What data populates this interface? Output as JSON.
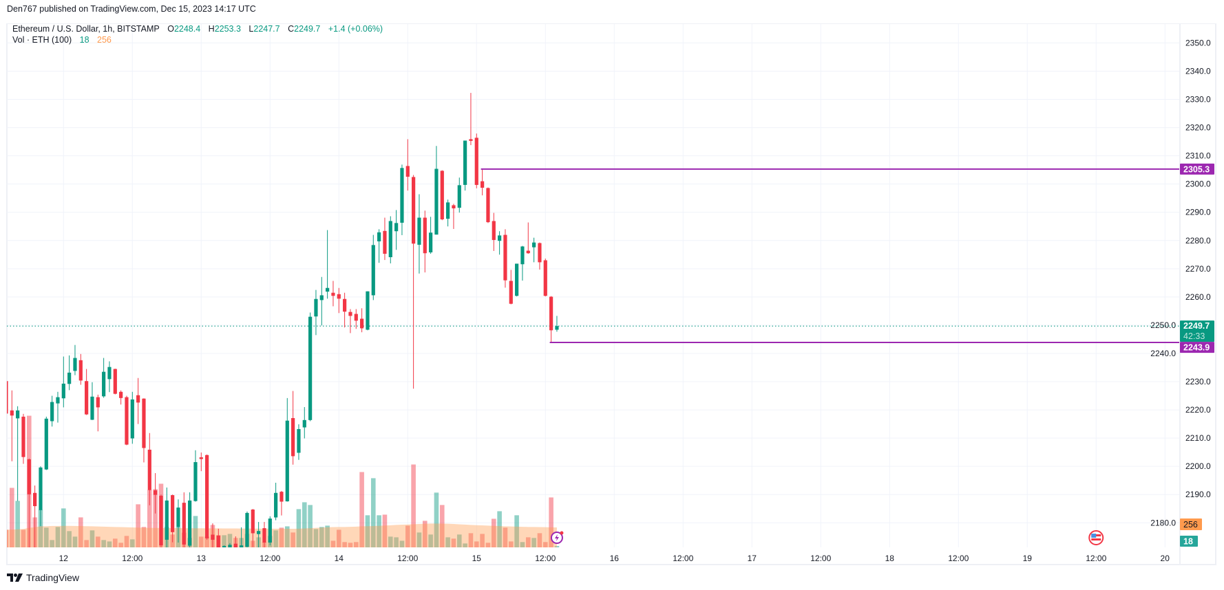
{
  "header": {
    "published": "Den767 published on TradingView.com, Dec 15, 2023 14:17 UTC"
  },
  "legend": {
    "symbol": "Ethereum / U.S. Dollar, 1h, BITSTAMP",
    "o_label": "O",
    "o": "2248.4",
    "h_label": "H",
    "h": "2253.3",
    "l_label": "L",
    "l": "2247.7",
    "c_label": "C",
    "c": "2249.7",
    "change": "+1.4 (+0.06%)",
    "vol_label": "Vol · ETH (100)",
    "vol_value": "18",
    "vol_ma": "256"
  },
  "footer": {
    "brand": "TradingView"
  },
  "colors": {
    "up": "#089981",
    "down": "#f23645",
    "level": "#9c27b0",
    "vol_ma": "#ff9a4d",
    "grid": "#f0f3fa"
  },
  "icons": [
    "latest-updates-icon",
    "us-economic-event-icon",
    "tradingview-logo-icon"
  ],
  "chart_data": {
    "type": "candlestick",
    "title": "",
    "symbol": "ETHUSD",
    "interval": "1h",
    "ylim": [
      2171.3,
      2357.9
    ],
    "y_ticks": [
      "2180.0",
      "2190.0",
      "2200.0",
      "2210.0",
      "2220.0",
      "2230.0",
      "2240.0",
      "2250.0",
      "2260.0",
      "2270.0",
      "2280.0",
      "2290.0",
      "2300.0",
      "2310.0",
      "2320.0",
      "2330.0",
      "2340.0",
      "2350.0"
    ],
    "x_ticks": [
      {
        "t": "2023-12-12T00:00",
        "label": "12"
      },
      {
        "t": "2023-12-12T12:00",
        "label": "12:00"
      },
      {
        "t": "2023-12-13T00:00",
        "label": "13"
      },
      {
        "t": "2023-12-13T12:00",
        "label": "12:00"
      },
      {
        "t": "2023-12-14T00:00",
        "label": "14"
      },
      {
        "t": "2023-12-14T12:00",
        "label": "12:00"
      },
      {
        "t": "2023-12-15T00:00",
        "label": "15"
      },
      {
        "t": "2023-12-15T12:00",
        "label": "12:00"
      },
      {
        "t": "2023-12-16T00:00",
        "label": "16"
      },
      {
        "t": "2023-12-16T12:00",
        "label": "12:00"
      },
      {
        "t": "2023-12-17T00:00",
        "label": "17"
      },
      {
        "t": "2023-12-17T12:00",
        "label": "12:00"
      },
      {
        "t": "2023-12-18T00:00",
        "label": "18"
      },
      {
        "t": "2023-12-18T12:00",
        "label": "12:00"
      },
      {
        "t": "2023-12-19T00:00",
        "label": "19"
      },
      {
        "t": "2023-12-19T12:00",
        "label": "12:00"
      },
      {
        "t": "2023-12-20T00:00",
        "label": "20"
      }
    ],
    "grid": true,
    "candle_fields": [
      "time",
      "open",
      "high",
      "low",
      "close",
      "volume"
    ],
    "candles": [
      [
        "2023-12-11T14:00",
        2230.2,
        2230.5,
        2218.5,
        2218.7,
        226
      ],
      [
        "2023-12-11T15:00",
        2219.8,
        2226.9,
        2201.8,
        2218.0,
        764
      ],
      [
        "2023-12-11T16:00",
        2217.0,
        2221.3,
        2187.7,
        2219.8,
        597
      ],
      [
        "2023-12-11T17:00",
        2217.6,
        2218.6,
        2200.9,
        2203.3,
        226
      ],
      [
        "2023-12-11T18:00",
        2202.5,
        2202.8,
        2170.0,
        2190.1,
        1690
      ],
      [
        "2023-12-11T19:00",
        2190.6,
        2193.2,
        2170.0,
        2185.9,
        385
      ],
      [
        "2023-12-11T20:00",
        2184.5,
        2200.0,
        2178.8,
        2199.6,
        482
      ],
      [
        "2023-12-11T21:00",
        2198.9,
        2217.6,
        2198.7,
        2216.9,
        253
      ],
      [
        "2023-12-11T22:00",
        2216.0,
        2225.0,
        2214.1,
        2222.8,
        94
      ],
      [
        "2023-12-11T23:00",
        2222.3,
        2226.4,
        2215.5,
        2224.5,
        262
      ],
      [
        "2023-12-12T00:00",
        2224.1,
        2238.9,
        2220.9,
        2229.3,
        500
      ],
      [
        "2023-12-12T01:00",
        2229.2,
        2239.3,
        2227.0,
        2233.2,
        209
      ],
      [
        "2023-12-12T02:00",
        2233.8,
        2243.0,
        2232.3,
        2238.4,
        138
      ],
      [
        "2023-12-12T03:00",
        2237.6,
        2239.8,
        2228.9,
        2230.4,
        385
      ],
      [
        "2023-12-12T04:00",
        2230.2,
        2234.5,
        2218.2,
        2218.4,
        94
      ],
      [
        "2023-12-12T05:00",
        2216.5,
        2229.8,
        2216.4,
        2224.7,
        218
      ],
      [
        "2023-12-12T06:00",
        2224.5,
        2225.4,
        2212.4,
        2220.9,
        138
      ],
      [
        "2023-12-12T07:00",
        2224.8,
        2238.4,
        2224.3,
        2233.5,
        94
      ],
      [
        "2023-12-12T08:00",
        2230.9,
        2237.2,
        2226.3,
        2235.2,
        76
      ],
      [
        "2023-12-12T09:00",
        2234.5,
        2234.6,
        2225.5,
        2225.7,
        112
      ],
      [
        "2023-12-12T10:00",
        2226.4,
        2226.9,
        2221.9,
        2224.2,
        59
      ],
      [
        "2023-12-12T11:00",
        2224.5,
        2225.0,
        2207.5,
        2207.7,
        147
      ],
      [
        "2023-12-12T12:00",
        2209.9,
        2226.4,
        2208.0,
        2223.7,
        103
      ],
      [
        "2023-12-12T13:00",
        2225.2,
        2231.3,
        2215.0,
        2222.6,
        553
      ],
      [
        "2023-12-12T14:00",
        2224.0,
        2224.1,
        2201.4,
        2206.5,
        262
      ],
      [
        "2023-12-12T15:00",
        2205.9,
        2211.8,
        2186.2,
        2191.6,
        738
      ],
      [
        "2023-12-12T16:00",
        2191.5,
        2197.6,
        2183.3,
        2189.9,
        747
      ],
      [
        "2023-12-12T17:00",
        2189.6,
        2190.0,
        2168.0,
        2172.0,
        817
      ],
      [
        "2023-12-12T18:00",
        2174.0,
        2192.5,
        2170.0,
        2187.9,
        262
      ],
      [
        "2023-12-12T19:00",
        2189.8,
        2190.0,
        2173.1,
        2176.7,
        165
      ],
      [
        "2023-12-12T20:00",
        2178.5,
        2188.3,
        2173.0,
        2185.4,
        259
      ],
      [
        "2023-12-12T21:00",
        2187.1,
        2190.8,
        2171.0,
        2172.3,
        188
      ],
      [
        "2023-12-12T22:00",
        2171.9,
        2190.8,
        2171.0,
        2187.9,
        121
      ],
      [
        "2023-12-12T23:00",
        2187.7,
        2205.7,
        2187.5,
        2201.5,
        403
      ],
      [
        "2023-12-13T00:00",
        2203.2,
        2204.9,
        2198.3,
        2202.6,
        138
      ],
      [
        "2023-12-13T01:00",
        2204.0,
        2204.2,
        2174.0,
        2174.5,
        138
      ],
      [
        "2023-12-13T02:00",
        2175.8,
        2179.8,
        2171.3,
        2174.0,
        288
      ],
      [
        "2023-12-13T03:00",
        2175.5,
        2177.9,
        2170.5,
        2171.3,
        156
      ],
      [
        "2023-12-13T04:00",
        2171.3,
        2172.0,
        2169.8,
        2171.8,
        156
      ],
      [
        "2023-12-13T05:00",
        2171.0,
        2172.8,
        2170.2,
        2172.2,
        173
      ],
      [
        "2023-12-13T06:00",
        2172.6,
        2175.2,
        2170.0,
        2171.0,
        121
      ],
      [
        "2023-12-13T07:00",
        2171.0,
        2178.4,
        2170.0,
        2172.0,
        121
      ],
      [
        "2023-12-13T08:00",
        2171.5,
        2184.0,
        2170.5,
        2183.5,
        173
      ],
      [
        "2023-12-13T09:00",
        2184.7,
        2184.9,
        2171.4,
        2176.3,
        85
      ],
      [
        "2023-12-13T10:00",
        2176.0,
        2180.3,
        2171.0,
        2177.1,
        129
      ],
      [
        "2023-12-13T11:00",
        2178.1,
        2180.3,
        2171.0,
        2173.0,
        68
      ],
      [
        "2023-12-13T12:00",
        2173.0,
        2182.3,
        2172.0,
        2181.5,
        147
      ],
      [
        "2023-12-13T13:00",
        2181.9,
        2194.2,
        2180.9,
        2190.6,
        218
      ],
      [
        "2023-12-13T14:00",
        2191.0,
        2191.3,
        2182.6,
        2187.5,
        253
      ],
      [
        "2023-12-13T15:00",
        2187.6,
        2224.2,
        2187.5,
        2216.2,
        270
      ],
      [
        "2023-12-13T16:00",
        2217.1,
        2226.7,
        2200.6,
        2203.6,
        191
      ],
      [
        "2023-12-13T17:00",
        2204.8,
        2214.9,
        2202.3,
        2213.2,
        491
      ],
      [
        "2023-12-13T18:00",
        2213.8,
        2221.0,
        2209.9,
        2216.4,
        579
      ],
      [
        "2023-12-13T19:00",
        2216.4,
        2254.5,
        2216.0,
        2253.0,
        544
      ],
      [
        "2023-12-13T20:00",
        2253.1,
        2262.5,
        2246.5,
        2259.3,
        235
      ],
      [
        "2023-12-13T21:00",
        2258.9,
        2267.1,
        2249.9,
        2260.6,
        262
      ],
      [
        "2023-12-13T22:00",
        2261.9,
        2283.7,
        2259.4,
        2263.2,
        279
      ],
      [
        "2023-12-13T23:00",
        2261.5,
        2265.7,
        2256.7,
        2260.4,
        85
      ],
      [
        "2023-12-14T00:00",
        2261.0,
        2263.2,
        2254.3,
        2259.4,
        226
      ],
      [
        "2023-12-14T01:00",
        2259.3,
        2261.5,
        2249.2,
        2254.8,
        68
      ],
      [
        "2023-12-14T02:00",
        2254.7,
        2255.7,
        2247.2,
        2253.3,
        59
      ],
      [
        "2023-12-14T03:00",
        2254.0,
        2255.7,
        2248.7,
        2251.6,
        68
      ],
      [
        "2023-12-14T04:00",
        2252.3,
        2256.0,
        2247.5,
        2248.9,
        967
      ],
      [
        "2023-12-14T05:00",
        2248.4,
        2262.0,
        2248.2,
        2262.0,
        412
      ],
      [
        "2023-12-14T06:00",
        2260.6,
        2282.0,
        2258.9,
        2278.4,
        888
      ],
      [
        "2023-12-14T07:00",
        2279.7,
        2284.0,
        2272.1,
        2282.9,
        412
      ],
      [
        "2023-12-14T08:00",
        2283.4,
        2288.1,
        2273.1,
        2275.3,
        420
      ],
      [
        "2023-12-14T09:00",
        2274.1,
        2288.6,
        2271.9,
        2286.9,
        138
      ],
      [
        "2023-12-14T10:00",
        2283.3,
        2290.8,
        2276.7,
        2286.2,
        129
      ],
      [
        "2023-12-14T11:00",
        2286.3,
        2306.9,
        2281.9,
        2305.7,
        85
      ],
      [
        "2023-12-14T12:00",
        2306.4,
        2315.9,
        2297.7,
        2302.6,
        279
      ],
      [
        "2023-12-14T13:00",
        2302.5,
        2303.2,
        2227.5,
        2278.9,
        1064
      ],
      [
        "2023-12-14T14:00",
        2278.5,
        2296.4,
        2268.3,
        2288.1,
        191
      ],
      [
        "2023-12-14T15:00",
        2288.1,
        2290.6,
        2268.7,
        2275.5,
        341
      ],
      [
        "2023-12-14T16:00",
        2275.8,
        2288.4,
        2275.3,
        2282.8,
        165
      ],
      [
        "2023-12-14T17:00",
        2282.1,
        2313.5,
        2282.1,
        2305.4,
        703
      ],
      [
        "2023-12-14T18:00",
        2304.7,
        2304.9,
        2287.2,
        2287.5,
        544
      ],
      [
        "2023-12-14T19:00",
        2287.7,
        2294.5,
        2285.0,
        2293.5,
        129
      ],
      [
        "2023-12-14T20:00",
        2292.5,
        2293.0,
        2284.1,
        2291.4,
        112
      ],
      [
        "2023-12-14T21:00",
        2291.6,
        2302.3,
        2289.9,
        2299.6,
        165
      ],
      [
        "2023-12-14T22:00",
        2299.7,
        2315.4,
        2297.7,
        2315.4,
        50
      ],
      [
        "2023-12-14T23:00",
        2315.9,
        2332.3,
        2313.8,
        2315.3,
        182
      ],
      [
        "2023-12-15T00:00",
        2316.4,
        2317.9,
        2298.5,
        2299.7,
        76
      ],
      [
        "2023-12-15T01:00",
        2301.0,
        2305.3,
        2296.0,
        2298.7,
        173
      ],
      [
        "2023-12-15T02:00",
        2298.6,
        2298.8,
        2286.2,
        2286.5,
        59
      ],
      [
        "2023-12-15T03:00",
        2286.9,
        2289.8,
        2276.3,
        2280.2,
        367
      ],
      [
        "2023-12-15T04:00",
        2279.9,
        2283.3,
        2275.0,
        2281.8,
        464
      ],
      [
        "2023-12-15T05:00",
        2282.0,
        2284.0,
        2263.3,
        2265.9,
        253
      ],
      [
        "2023-12-15T06:00",
        2265.7,
        2269.6,
        2257.4,
        2257.6,
        76
      ],
      [
        "2023-12-15T07:00",
        2260.4,
        2271.8,
        2260.2,
        2271.8,
        412
      ],
      [
        "2023-12-15T08:00",
        2271.6,
        2278.1,
        2265.8,
        2277.9,
        68
      ],
      [
        "2023-12-15T09:00",
        2276.4,
        2286.4,
        2275.3,
        2275.5,
        129
      ],
      [
        "2023-12-15T10:00",
        2277.6,
        2281.0,
        2272.3,
        2279.3,
        121
      ],
      [
        "2023-12-15T11:00",
        2279.1,
        2279.3,
        2269.7,
        2272.3,
        182
      ],
      [
        "2023-12-15T12:00",
        2273.0,
        2273.6,
        2260.2,
        2260.4,
        68
      ],
      [
        "2023-12-15T13:00",
        2260.1,
        2260.3,
        2244.0,
        2248.2,
        641
      ],
      [
        "2023-12-15T14:00",
        2248.4,
        2253.3,
        2247.7,
        2249.7,
        18
      ]
    ],
    "volume_ma": [
      226,
      228,
      232,
      236,
      250,
      258,
      270,
      272,
      275,
      275,
      276,
      276,
      275,
      274,
      272,
      270,
      268,
      266,
      264,
      262,
      260,
      258,
      256,
      254,
      252,
      250,
      249,
      248,
      247,
      247,
      247,
      246,
      246,
      245,
      245,
      245,
      244,
      244,
      243,
      243,
      243,
      242,
      242,
      242,
      241,
      241,
      240,
      240,
      239,
      239,
      238,
      240,
      243,
      246,
      250,
      254,
      258,
      260,
      262,
      262,
      264,
      266,
      270,
      272,
      274,
      276,
      280,
      284,
      288,
      291,
      294,
      297,
      300,
      303,
      306,
      306,
      305,
      303,
      300,
      296,
      292,
      288,
      285,
      282,
      279,
      276,
      273,
      270,
      268,
      266,
      264,
      262,
      261,
      260,
      259,
      257,
      256
    ],
    "horizontal_levels": [
      {
        "price": 2305.3,
        "label": "2305.3",
        "from": "2023-12-15T01:00"
      },
      {
        "price": 2243.9,
        "label": "2243.9",
        "from": "2023-12-15T13:00"
      }
    ],
    "last_price": {
      "price": 2249.7,
      "label": "2249.7",
      "countdown": "42:33"
    },
    "volume_labels": {
      "ma": "256",
      "value": "18"
    },
    "events": [
      {
        "t": "2023-12-19T12:00",
        "icon": "us-economic-event-icon"
      }
    ]
  }
}
